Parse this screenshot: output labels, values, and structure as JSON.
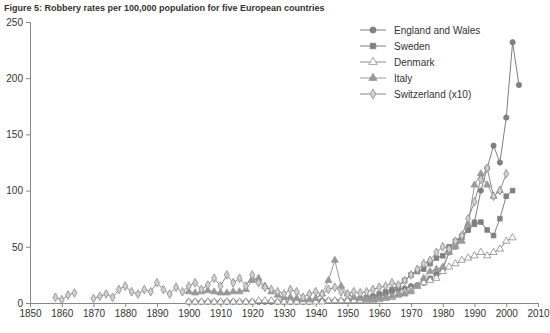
{
  "chart_data": {
    "type": "line",
    "title": "Figure 5: Robbery rates per 100,000 population for five European countries",
    "x": [
      1856,
      1858,
      1860,
      1862,
      1864,
      1866,
      1868,
      1870,
      1872,
      1874,
      1876,
      1878,
      1880,
      1882,
      1884,
      1886,
      1888,
      1890,
      1892,
      1894,
      1896,
      1898,
      1900,
      1902,
      1904,
      1906,
      1908,
      1910,
      1912,
      1914,
      1916,
      1918,
      1920,
      1922,
      1924,
      1926,
      1928,
      1930,
      1932,
      1934,
      1936,
      1938,
      1940,
      1942,
      1944,
      1946,
      1948,
      1950,
      1952,
      1954,
      1956,
      1958,
      1960,
      1962,
      1964,
      1966,
      1968,
      1970,
      1972,
      1974,
      1976,
      1978,
      1980,
      1982,
      1984,
      1986,
      1988,
      1990,
      1992,
      1994,
      1996,
      1998,
      2000,
      2002,
      2004
    ],
    "series": [
      {
        "name": "England and Wales",
        "color": "#7f7f7f",
        "marker": "circle",
        "values": [
          null,
          null,
          null,
          null,
          null,
          null,
          null,
          null,
          null,
          null,
          null,
          null,
          null,
          null,
          null,
          null,
          null,
          null,
          null,
          null,
          null,
          null,
          1,
          1,
          1,
          1,
          1,
          1,
          1,
          1,
          1,
          1,
          1,
          1,
          1,
          1,
          1,
          1,
          1,
          1,
          1,
          1,
          2,
          2,
          2,
          2,
          2,
          2,
          2,
          2,
          3,
          4,
          6,
          8,
          10,
          12,
          13,
          15,
          16,
          18,
          22,
          26,
          30,
          45,
          50,
          60,
          65,
          72,
          100,
          120,
          140,
          125,
          165,
          232,
          194
        ]
      },
      {
        "name": "Sweden",
        "color": "#808080",
        "marker": "square",
        "values": [
          null,
          null,
          null,
          null,
          null,
          null,
          null,
          null,
          null,
          null,
          null,
          null,
          null,
          null,
          null,
          null,
          null,
          null,
          null,
          null,
          null,
          null,
          null,
          null,
          null,
          null,
          null,
          null,
          null,
          null,
          null,
          null,
          null,
          null,
          null,
          null,
          null,
          null,
          null,
          null,
          null,
          null,
          null,
          null,
          null,
          null,
          null,
          2,
          3,
          4,
          5,
          6,
          8,
          10,
          12,
          15,
          20,
          25,
          28,
          30,
          35,
          40,
          42,
          50,
          55,
          58,
          65,
          70,
          72,
          65,
          60,
          75,
          95,
          100,
          null
        ]
      },
      {
        "name": "Denmark",
        "color": "#8c8c8c",
        "marker": "triangle-open",
        "values": [
          null,
          null,
          null,
          null,
          null,
          null,
          null,
          null,
          null,
          null,
          null,
          null,
          null,
          null,
          null,
          null,
          null,
          null,
          null,
          null,
          null,
          null,
          1,
          1,
          1,
          1,
          1,
          1,
          1,
          1,
          1,
          1,
          1,
          2,
          2,
          2,
          1,
          1,
          1,
          1,
          1,
          1,
          1,
          1,
          2,
          2,
          2,
          2,
          2,
          2,
          2,
          2,
          3,
          4,
          5,
          8,
          10,
          12,
          15,
          18,
          20,
          22,
          28,
          32,
          35,
          38,
          40,
          42,
          45,
          42,
          45,
          48,
          55,
          58,
          null
        ]
      },
      {
        "name": "Italy",
        "color": "#999999",
        "marker": "triangle",
        "values": [
          null,
          null,
          null,
          null,
          null,
          null,
          null,
          null,
          null,
          null,
          null,
          null,
          null,
          null,
          null,
          null,
          null,
          null,
          null,
          null,
          null,
          null,
          10,
          9,
          10,
          11,
          10,
          9,
          9,
          10,
          10,
          12,
          20,
          22,
          15,
          10,
          7,
          5,
          5,
          4,
          3,
          3,
          4,
          8,
          20,
          38,
          15,
          8,
          5,
          4,
          3,
          3,
          4,
          5,
          6,
          7,
          8,
          10,
          15,
          22,
          28,
          30,
          32,
          45,
          50,
          55,
          70,
          105,
          115,
          105,
          95,
          100,
          null,
          null,
          null
        ]
      },
      {
        "name": "Switzerland (x10)",
        "color": "#8a8a8a",
        "marker": "diamond",
        "values": [
          null,
          5,
          3,
          7,
          9,
          null,
          null,
          4,
          6,
          8,
          5,
          12,
          15,
          10,
          8,
          12,
          10,
          18,
          12,
          8,
          14,
          10,
          15,
          18,
          12,
          16,
          22,
          15,
          25,
          18,
          22,
          15,
          25,
          18,
          14,
          12,
          10,
          8,
          12,
          10,
          5,
          8,
          10,
          8,
          12,
          14,
          10,
          8,
          10,
          9,
          10,
          12,
          14,
          15,
          18,
          16,
          20,
          25,
          30,
          35,
          38,
          45,
          50,
          48,
          55,
          60,
          75,
          90,
          110,
          120,
          95,
          100,
          115,
          null,
          null
        ]
      }
    ],
    "xlim": [
      1850,
      2010
    ],
    "xticks": [
      1850,
      1860,
      1870,
      1880,
      1890,
      1900,
      1910,
      1920,
      1930,
      1940,
      1950,
      1960,
      1970,
      1980,
      1990,
      2000,
      2010
    ],
    "ylim": [
      0,
      250
    ],
    "yticks": [
      0,
      50,
      100,
      150,
      200,
      250
    ],
    "grid": false,
    "legend": "upper right"
  }
}
